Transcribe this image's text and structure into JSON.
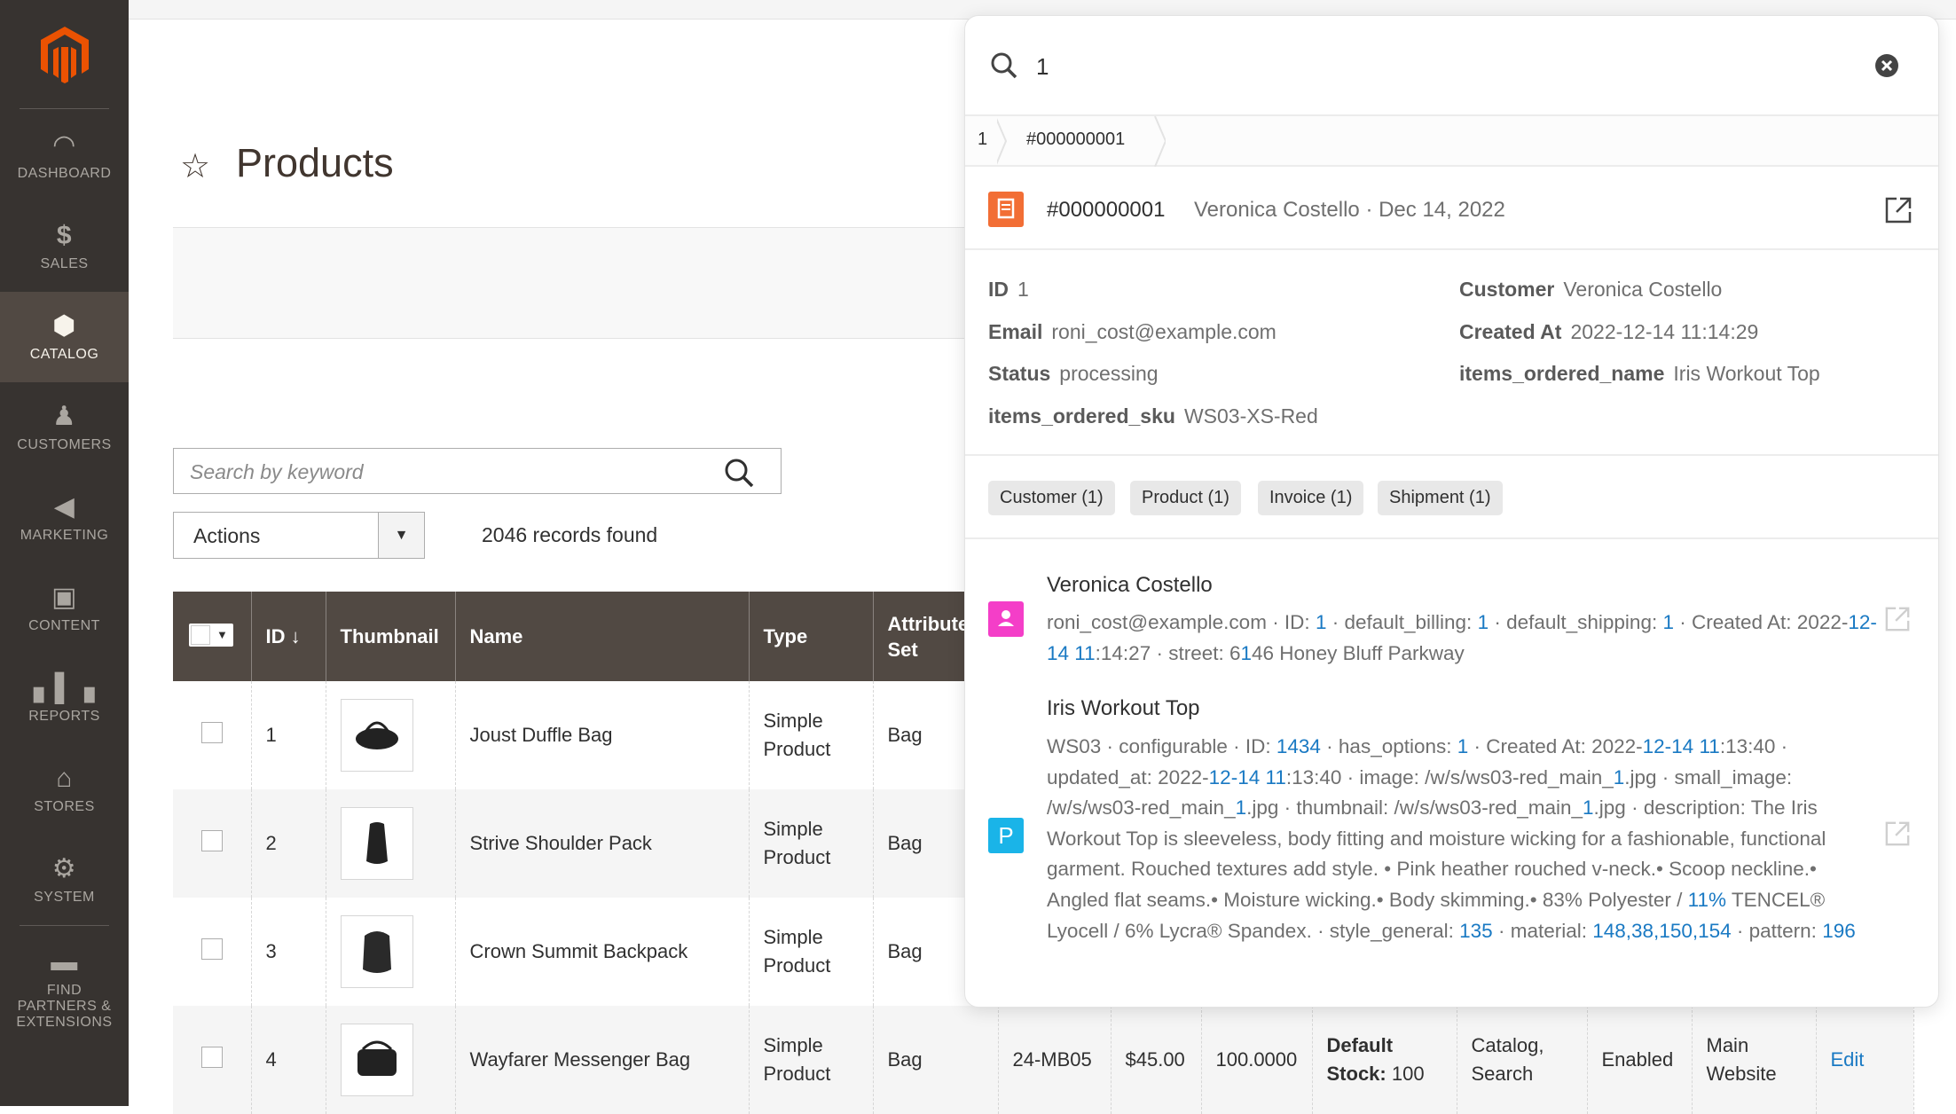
{
  "sidebar": {
    "items": [
      {
        "label": "DASHBOARD",
        "icon": "dashboard-icon"
      },
      {
        "label": "SALES",
        "icon": "dollar-icon"
      },
      {
        "label": "CATALOG",
        "icon": "box-icon",
        "active": true
      },
      {
        "label": "CUSTOMERS",
        "icon": "person-icon"
      },
      {
        "label": "MARKETING",
        "icon": "megaphone-icon"
      },
      {
        "label": "CONTENT",
        "icon": "layout-icon"
      },
      {
        "label": "REPORTS",
        "icon": "bar-chart-icon"
      },
      {
        "label": "STORES",
        "icon": "storefront-icon"
      },
      {
        "label": "SYSTEM",
        "icon": "gear-icon"
      },
      {
        "label": "FIND PARTNERS & EXTENSIONS",
        "icon": "lego-brick-icon"
      }
    ],
    "logo_color": "#eb5202"
  },
  "page": {
    "title": "Products"
  },
  "grid": {
    "search_placeholder": "Search by keyword",
    "actions_label": "Actions",
    "records": "2046 records found",
    "headers": [
      "ID ↓",
      "Thumbnail",
      "Name",
      "Type",
      "Attribute Set"
    ],
    "rows": [
      {
        "id": "1",
        "name": "Joust Duffle Bag",
        "type": "Simple Product",
        "set": "Bag"
      },
      {
        "id": "2",
        "name": "Strive Shoulder Pack",
        "type": "Simple Product",
        "set": "Bag"
      },
      {
        "id": "3",
        "name": "Crown Summit Backpack",
        "type": "Simple Product",
        "set": "Bag"
      },
      {
        "id": "4",
        "name": "Wayfarer Messenger Bag",
        "type": "Simple Product",
        "set": "Bag",
        "sku": "24-MB05",
        "price": "$45.00",
        "qty": "100.0000",
        "salable_label": "Default Stock:",
        "salable_value": "100",
        "visibility": "Catalog, Search",
        "status": "Enabled",
        "websites": "Main Website",
        "action": "Edit"
      }
    ]
  },
  "panel": {
    "query": "1",
    "breadcrumb": [
      "1",
      "#000000001"
    ],
    "header": {
      "title": "#000000001",
      "subtitle": "Veronica Costello · Dec 14, 2022",
      "icon_color": "#f26e35"
    },
    "fields": [
      {
        "label": "ID",
        "value": "1"
      },
      {
        "label": "Customer",
        "value": "Veronica Costello"
      },
      {
        "label": "Email",
        "value": "roni_cost@example.com"
      },
      {
        "label": "Created At",
        "value": "2022-12-14 11:14:29"
      },
      {
        "label": "Status",
        "value": "processing"
      },
      {
        "label": "items_ordered_name",
        "value": "Iris Workout Top"
      },
      {
        "label": "items_ordered_sku",
        "value": "WS03-XS-Red"
      }
    ],
    "chips": [
      "Customer (1)",
      "Product (1)",
      "Invoice (1)",
      "Shipment (1)"
    ],
    "results": [
      {
        "title": "Veronica Costello",
        "icon_letter": "",
        "icon_color": "#f43ec8",
        "segments": [
          "roni_cost@example.com · ID: ",
          "1",
          " · default_billing: ",
          "1",
          " · default_shipping: ",
          "1",
          " · Created At: 2022-",
          "12-14",
          " ",
          "11",
          ":14:27 · street: 6",
          "1",
          "46 Honey Bluff Parkway"
        ]
      },
      {
        "title": "Iris Workout Top",
        "icon_letter": "P",
        "icon_color": "#1ab4e8",
        "segments": [
          "WS03 · configurable · ID: ",
          "1434",
          " · has_options: ",
          "1",
          " · Created At: 2022-",
          "12-14",
          " ",
          "11",
          ":13:40 · updated_at: 2022-",
          "12-14",
          " ",
          "11",
          ":13:40 · image: /w/s/ws03-red_main_",
          "1",
          ".jpg · small_image: /w/s/ws03-red_main_",
          "1",
          ".jpg · thumbnail: /w/s/ws03-red_main_",
          "1",
          ".jpg · description: The Iris Workout Top is sleeveless, body fitting and moisture wicking for a fashionable, functional garment. Rouched textures add style. • Pink heather rouched v-neck.• Scoop neckline.• Angled flat seams.• Moisture wicking.• Body skimming.• 83% Polyester / ",
          "11%",
          " TENCEL® Lyocell / 6% Lycra® Spandex. · style_general: ",
          "135",
          " · material: ",
          "148,38,150,154",
          " · pattern: ",
          "196"
        ]
      }
    ]
  }
}
